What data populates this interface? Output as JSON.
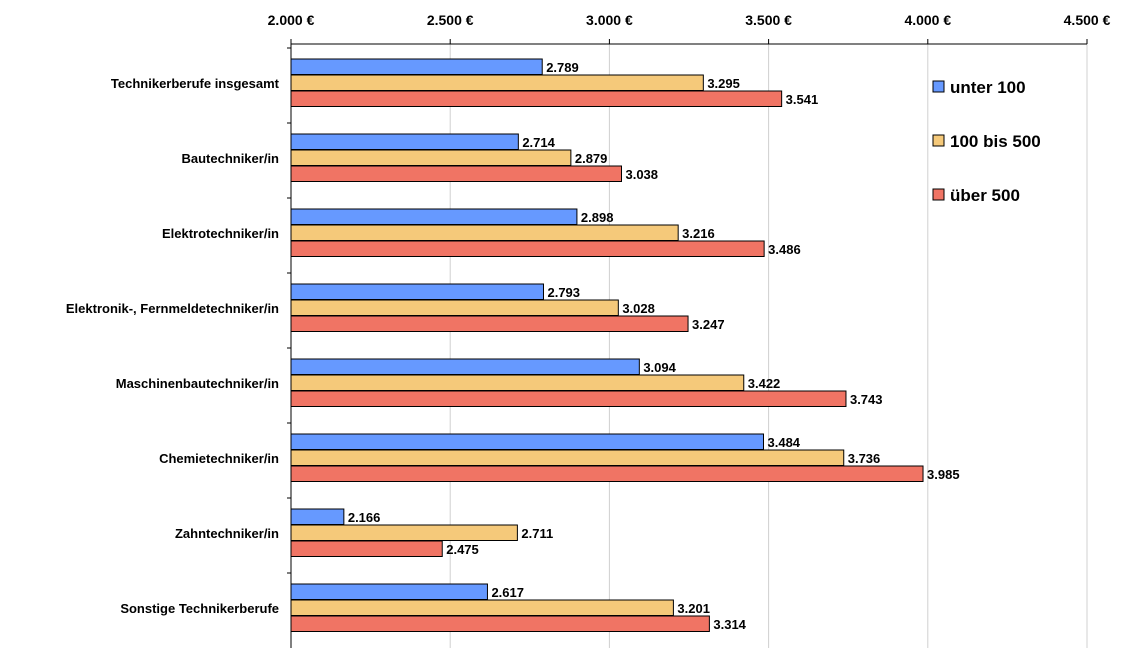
{
  "chart_data": {
    "type": "bar",
    "orientation": "horizontal",
    "categories": [
      "Technikerberufe insgesamt",
      "Bautechniker/in",
      "Elektrotechniker/in",
      "Elektronik-, Fernmeldetechniker/in",
      "Maschinenbautechniker/in",
      "Chemietechniker/in",
      "Zahntechniker/in",
      "Sonstige Technikerberufe"
    ],
    "series": [
      {
        "name": "unter 100",
        "color": "#6699ff",
        "values": [
          2789,
          2714,
          2898,
          2793,
          3094,
          3484,
          2166,
          2617
        ],
        "labels": [
          "2.789",
          "2.714",
          "2.898",
          "2.793",
          "3.094",
          "3.484",
          "2.166",
          "2.617"
        ]
      },
      {
        "name": "100 bis 500",
        "color": "#f5c97a",
        "values": [
          3295,
          2879,
          3216,
          3028,
          3422,
          3736,
          2711,
          3201
        ],
        "labels": [
          "3.295",
          "2.879",
          "3.216",
          "3.028",
          "3.422",
          "3.736",
          "2.711",
          "3.201"
        ]
      },
      {
        "name": "über 500",
        "color": "#f07464",
        "values": [
          3541,
          3038,
          3486,
          3247,
          3743,
          3985,
          2475,
          3314
        ],
        "labels": [
          "3.541",
          "3.038",
          "3.486",
          "3.247",
          "3.743",
          "3.985",
          "2.475",
          "3.314"
        ]
      }
    ],
    "xlim": [
      2000,
      4500
    ],
    "x_ticks": [
      2000,
      2500,
      3000,
      3500,
      4000,
      4500
    ],
    "x_tick_labels": [
      "2.000 €",
      "2.500 €",
      "3.000 €",
      "3.500 €",
      "4.000 €",
      "4.500 €"
    ],
    "x_axis_position": "top",
    "grid": "vertical",
    "legend": "right",
    "title": "",
    "xlabel": "",
    "ylabel": ""
  }
}
